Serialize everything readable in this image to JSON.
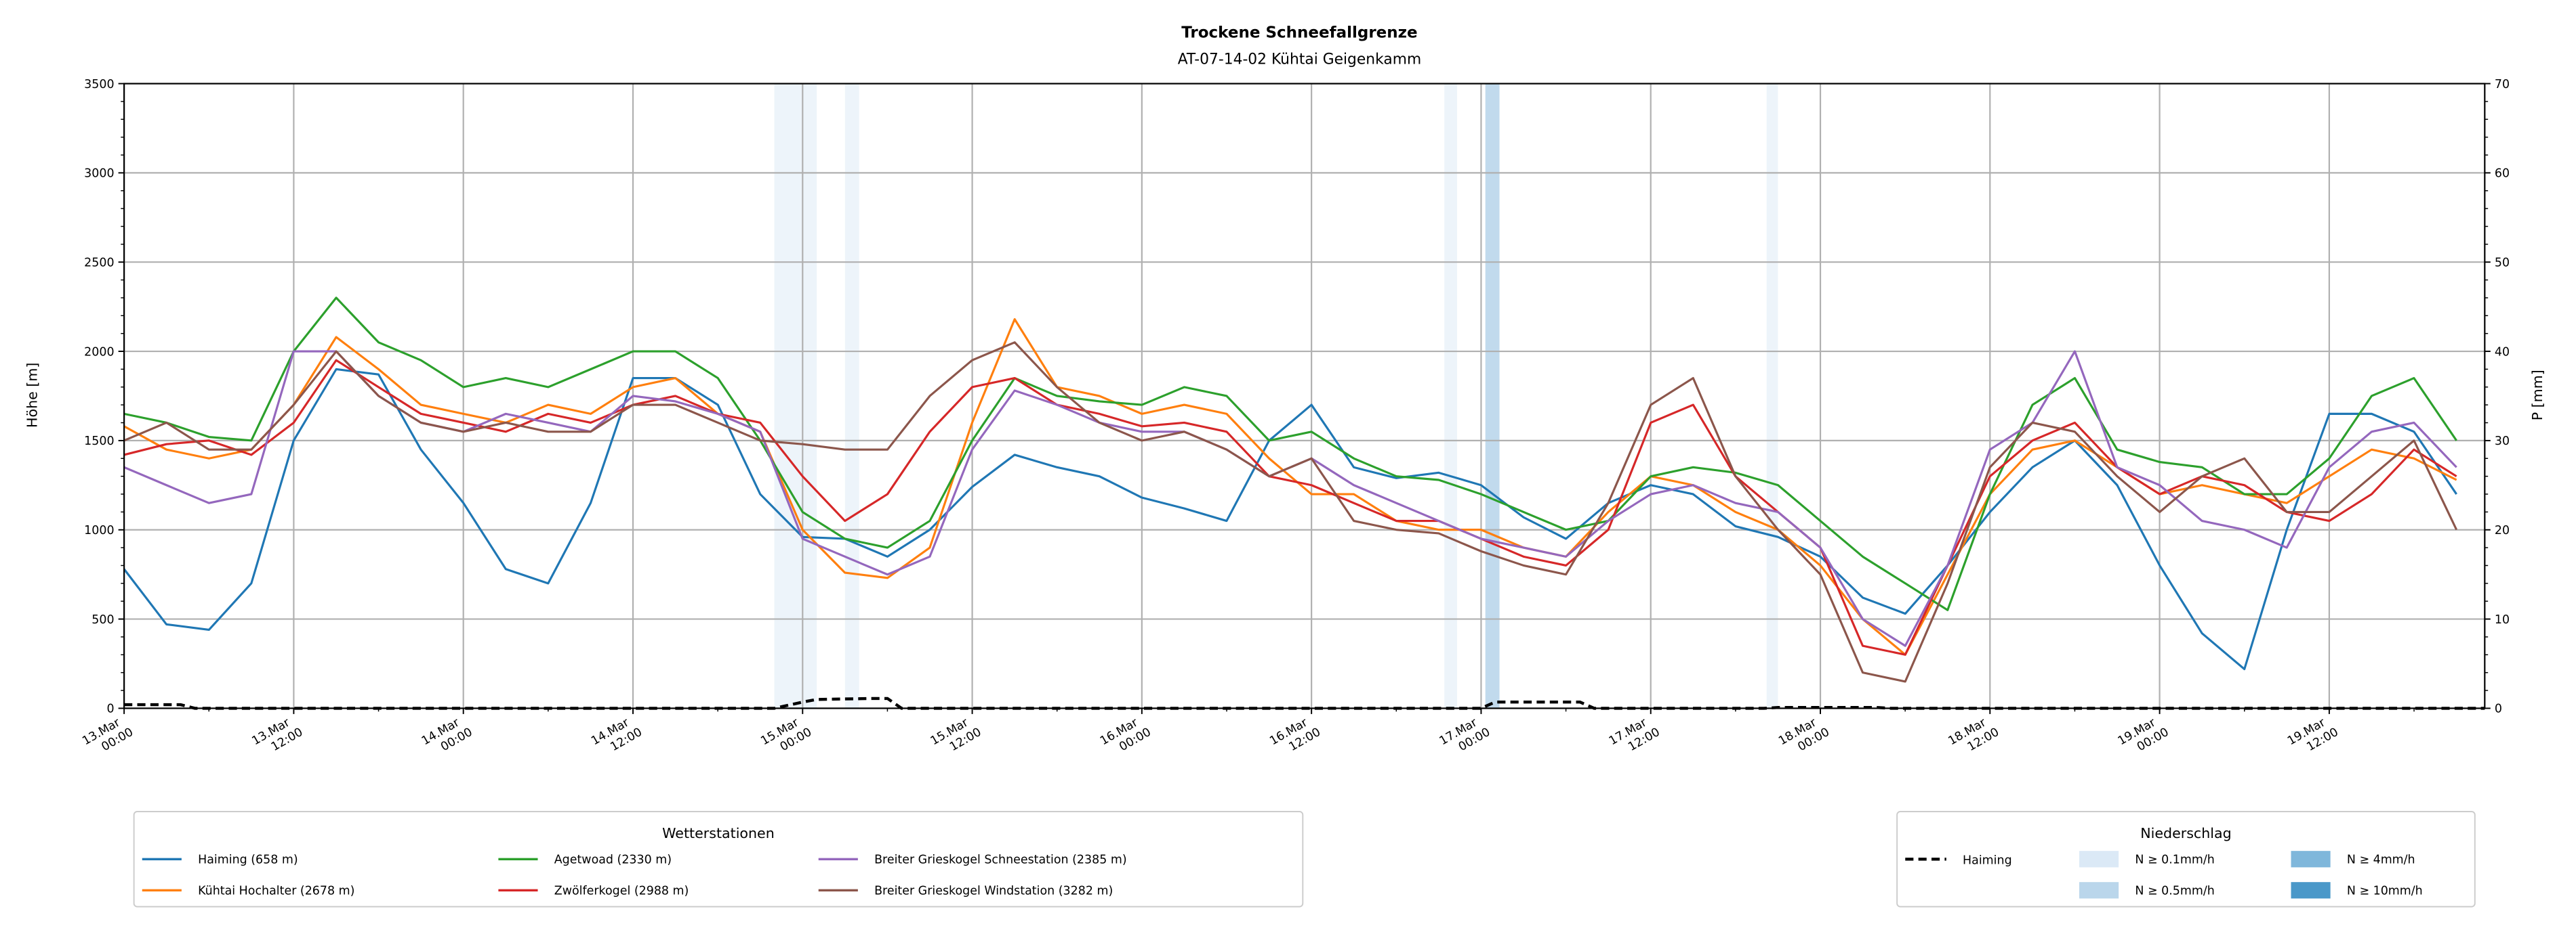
{
  "chart_data": {
    "type": "line",
    "title": "Trockene Schneefallgrenze",
    "subtitle": "AT-07-14-02 Kühtai Geigenkamm",
    "ylabel": "Höhe [m]",
    "y2label": "P [mm]",
    "ylim": [
      0,
      3500
    ],
    "y2lim": [
      0,
      70
    ],
    "yticks": [
      0,
      500,
      1000,
      1500,
      2000,
      2500,
      3000,
      3500
    ],
    "y2ticks": [
      0,
      10,
      20,
      30,
      40,
      50,
      60,
      70
    ],
    "x_unit": "hours since 13.Mar 00:00",
    "xlim": [
      0,
      167
    ],
    "grid": true,
    "xticks": [
      {
        "t": 0,
        "label": [
          "13.Mar",
          "00:00"
        ]
      },
      {
        "t": 12,
        "label": [
          "13.Mar",
          "12:00"
        ]
      },
      {
        "t": 24,
        "label": [
          "14.Mar",
          "00:00"
        ]
      },
      {
        "t": 36,
        "label": [
          "14.Mar",
          "12:00"
        ]
      },
      {
        "t": 48,
        "label": [
          "15.Mar",
          "00:00"
        ]
      },
      {
        "t": 60,
        "label": [
          "15.Mar",
          "12:00"
        ]
      },
      {
        "t": 72,
        "label": [
          "16.Mar",
          "00:00"
        ]
      },
      {
        "t": 84,
        "label": [
          "16.Mar",
          "12:00"
        ]
      },
      {
        "t": 96,
        "label": [
          "17.Mar",
          "00:00"
        ]
      },
      {
        "t": 108,
        "label": [
          "17.Mar",
          "12:00"
        ]
      },
      {
        "t": 120,
        "label": [
          "18.Mar",
          "00:00"
        ]
      },
      {
        "t": 132,
        "label": [
          "18.Mar",
          "12:00"
        ]
      },
      {
        "t": 144,
        "label": [
          "19.Mar",
          "00:00"
        ]
      },
      {
        "t": 156,
        "label": [
          "19.Mar",
          "12:00"
        ]
      }
    ],
    "x": [
      0,
      3,
      6,
      9,
      12,
      15,
      18,
      21,
      24,
      27,
      30,
      33,
      36,
      39,
      42,
      45,
      48,
      51,
      54,
      57,
      60,
      63,
      66,
      69,
      72,
      75,
      78,
      81,
      84,
      87,
      90,
      93,
      96,
      99,
      102,
      105,
      108,
      111,
      114,
      117,
      120,
      123,
      126,
      129,
      132,
      135,
      138,
      141,
      144,
      147,
      150,
      153,
      156,
      159,
      162,
      165
    ],
    "series": [
      {
        "name": "Haiming (658 m)",
        "color": "#1f77b4",
        "values": [
          780,
          470,
          440,
          700,
          1500,
          1900,
          1870,
          1450,
          1150,
          780,
          700,
          1150,
          1850,
          1850,
          1700,
          1200,
          960,
          950,
          850,
          1000,
          1240,
          1420,
          1350,
          1300,
          1180,
          1120,
          1050,
          1500,
          1700,
          1350,
          1290,
          1320,
          1250,
          1070,
          950,
          1150,
          1250,
          1200,
          1020,
          960,
          850,
          620,
          530,
          800,
          1100,
          1350,
          1500,
          1250,
          800,
          420,
          220,
          1000,
          1650,
          1650,
          1550,
          1200
        ]
      },
      {
        "name": "Kühtai Hochalter (2678 m)",
        "color": "#ff7f0e",
        "values": [
          1580,
          1450,
          1400,
          1450,
          1700,
          2080,
          1900,
          1700,
          1650,
          1600,
          1700,
          1650,
          1800,
          1850,
          1650,
          1550,
          1000,
          760,
          730,
          900,
          1600,
          2180,
          1800,
          1750,
          1650,
          1700,
          1650,
          1400,
          1200,
          1200,
          1050,
          1000,
          1000,
          900,
          850,
          1100,
          1300,
          1250,
          1100,
          1000,
          800,
          500,
          300,
          750,
          1200,
          1450,
          1500,
          1350,
          1200,
          1250,
          1200,
          1150,
          1300,
          1450,
          1400,
          1280
        ]
      },
      {
        "name": "Agetwoad (2330 m)",
        "color": "#2ca02c",
        "values": [
          1650,
          1600,
          1520,
          1500,
          2000,
          2300,
          2050,
          1950,
          1800,
          1850,
          1800,
          1900,
          2000,
          2000,
          1850,
          1500,
          1100,
          950,
          900,
          1050,
          1500,
          1850,
          1750,
          1720,
          1700,
          1800,
          1750,
          1500,
          1550,
          1400,
          1300,
          1280,
          1200,
          1100,
          1000,
          1050,
          1300,
          1350,
          1320,
          1250,
          1050,
          850,
          700,
          550,
          1200,
          1700,
          1850,
          1450,
          1380,
          1350,
          1200,
          1200,
          1400,
          1750,
          1850,
          1500
        ]
      },
      {
        "name": "Zwölferkogel (2988 m)",
        "color": "#d62728",
        "values": [
          1420,
          1480,
          1500,
          1420,
          1600,
          1950,
          1800,
          1650,
          1600,
          1550,
          1650,
          1600,
          1700,
          1750,
          1650,
          1600,
          1300,
          1050,
          1200,
          1550,
          1800,
          1850,
          1700,
          1650,
          1580,
          1600,
          1550,
          1300,
          1250,
          1150,
          1050,
          1050,
          950,
          850,
          800,
          1000,
          1600,
          1700,
          1300,
          1100,
          900,
          350,
          300,
          800,
          1300,
          1500,
          1600,
          1350,
          1200,
          1300,
          1250,
          1100,
          1050,
          1200,
          1450,
          1300
        ]
      },
      {
        "name": "Breiter Grieskogel Schneestation (2385 m)",
        "color": "#9467bd",
        "values": [
          1350,
          1250,
          1150,
          1200,
          2000,
          2000,
          1750,
          1600,
          1550,
          1650,
          1600,
          1550,
          1750,
          1720,
          1650,
          1550,
          950,
          850,
          750,
          850,
          1450,
          1780,
          1700,
          1600,
          1550,
          1550,
          1450,
          1300,
          1400,
          1250,
          1150,
          1050,
          950,
          900,
          850,
          1050,
          1200,
          1250,
          1150,
          1100,
          900,
          500,
          350,
          800,
          1450,
          1600,
          2000,
          1350,
          1250,
          1050,
          1000,
          900,
          1350,
          1550,
          1600,
          1350
        ]
      },
      {
        "name": "Breiter Grieskogel Windstation (3282 m)",
        "color": "#8c564b",
        "values": [
          1500,
          1600,
          1450,
          1450,
          1700,
          2000,
          1750,
          1600,
          1550,
          1600,
          1550,
          1550,
          1700,
          1700,
          1600,
          1500,
          1480,
          1450,
          1450,
          1750,
          1950,
          2050,
          1800,
          1600,
          1500,
          1550,
          1450,
          1300,
          1400,
          1050,
          1000,
          980,
          880,
          800,
          750,
          1150,
          1700,
          1850,
          1300,
          1000,
          750,
          200,
          150,
          700,
          1350,
          1600,
          1550,
          1300,
          1100,
          1300,
          1400,
          1100,
          1100,
          1300,
          1500,
          1000
        ]
      }
    ],
    "precip_series": {
      "name": "Haiming",
      "axis": "right",
      "style": "dashed",
      "color": "#000000",
      "t": [
        0,
        4,
        5,
        46,
        48,
        49,
        53,
        54,
        55,
        96,
        97,
        103,
        104,
        116,
        117,
        124,
        125,
        167
      ],
      "values": [
        0.4,
        0.4,
        0,
        0,
        0.7,
        1.0,
        1.1,
        1.1,
        0,
        0,
        0.7,
        0.7,
        0,
        0,
        0.1,
        0.1,
        0,
        0
      ]
    },
    "precip_bands": [
      {
        "t0": 46,
        "t1": 49,
        "class": "N ≥ 0.1mm/h"
      },
      {
        "t0": 51,
        "t1": 52,
        "class": "N ≥ 0.1mm/h"
      },
      {
        "t0": 93.4,
        "t1": 94.3,
        "class": "N ≥ 0.1mm/h"
      },
      {
        "t0": 96.3,
        "t1": 97.3,
        "class": "N ≥ 0.5mm/h"
      },
      {
        "t0": 116.2,
        "t1": 117.0,
        "class": "N ≥ 0.1mm/h"
      }
    ],
    "legend_stations": {
      "title": "Wetterstationen",
      "placement": "bottom-left"
    },
    "legend_precip": {
      "title": "Niederschlag",
      "placement": "bottom-right",
      "line_label": "Haiming",
      "classes": [
        {
          "label": "N ≥ 0.1mm/h",
          "color": "#dbe9f6"
        },
        {
          "label": "N ≥ 0.5mm/h",
          "color": "#bad6eb"
        },
        {
          "label": "N ≥ 4mm/h",
          "color": "#7fb7db"
        },
        {
          "label": "N ≥ 10mm/h",
          "color": "#4a98c9"
        }
      ]
    }
  }
}
